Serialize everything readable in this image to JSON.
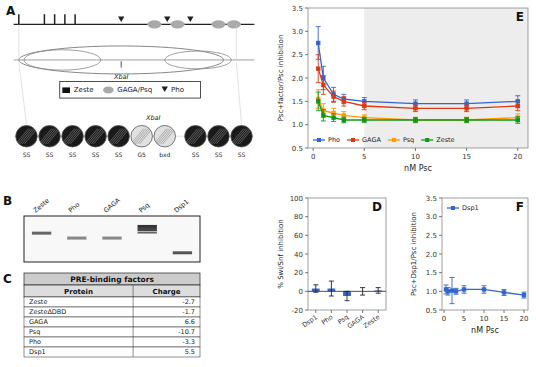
{
  "chart_data": [
    {
      "type": "diagram",
      "annotations": [
        "A",
        "XbaI",
        "Zeste",
        "GAGA/Psq",
        "Pho",
        "XbaI"
      ],
      "categories": [
        "SS",
        "SS",
        "SS",
        "SS",
        "SS",
        "G5",
        "bxd",
        "SS",
        "SS",
        "SS"
      ],
      "colors": [
        "#1a1a1a",
        "#1a1a1a",
        "#1a1a1a",
        "#1a1a1a",
        "#1a1a1a",
        "#e0e0e0",
        "#e0e0e0",
        "#1a1a1a",
        "#1a1a1a",
        "#1a1a1a"
      ]
    },
    {
      "type": "gel",
      "annotations": [
        "B"
      ],
      "categories": [
        "Zeste",
        "Pho",
        "GAGA",
        "Psq",
        "Dsp1"
      ]
    },
    {
      "type": "table",
      "annotations": [
        "C"
      ],
      "title": "PRE-binding factors",
      "xlabel": "Protein",
      "ylabel": "Charge",
      "categories": [
        "Zeste",
        "ZesteΔDBD",
        "GAGA",
        "Psq",
        "Pho",
        "Dsp1"
      ],
      "values": [
        -2.7,
        -1.7,
        6.6,
        -10.7,
        -3.3,
        5.5
      ]
    },
    {
      "type": "line",
      "annotations": [
        "E"
      ],
      "xlabel": "nM Psc",
      "ylabel": "Psc+factor/Psc inhibition",
      "x": [
        0.5,
        1,
        2,
        3,
        5,
        10,
        15,
        20
      ],
      "series": [
        {
          "name": "Pho",
          "values": [
            2.75,
            2.0,
            1.65,
            1.55,
            1.5,
            1.45,
            1.45,
            1.5
          ],
          "errors": [
            0.35,
            0.25,
            0.15,
            0.1,
            0.08,
            0.08,
            0.08,
            0.12
          ]
        },
        {
          "name": "GAGA",
          "values": [
            2.2,
            1.85,
            1.6,
            1.5,
            1.4,
            1.35,
            1.35,
            1.4
          ],
          "errors": [
            0.3,
            0.2,
            0.12,
            0.1,
            0.08,
            0.07,
            0.07,
            0.1
          ]
        },
        {
          "name": "Psq",
          "values": [
            1.55,
            1.3,
            1.25,
            1.2,
            1.15,
            1.1,
            1.1,
            1.15
          ],
          "errors": [
            0.2,
            0.15,
            0.1,
            0.08,
            0.06,
            0.06,
            0.06,
            0.08
          ]
        },
        {
          "name": "Zeste",
          "values": [
            1.5,
            1.2,
            1.15,
            1.1,
            1.1,
            1.1,
            1.1,
            1.1
          ],
          "errors": [
            0.2,
            0.12,
            0.08,
            0.06,
            0.05,
            0.05,
            0.05,
            0.07
          ]
        }
      ],
      "shaded_x": [
        5,
        21
      ],
      "xlim": [
        -0.5,
        21
      ],
      "ylim": [
        0.5,
        3.5
      ],
      "xticks": [
        0,
        5,
        10,
        15,
        20
      ],
      "yticks": [
        0.5,
        {
          "value": 1,
          "label": "1.0"
        },
        1.5,
        {
          "value": 2,
          "label": "2.0"
        },
        2.5,
        {
          "value": 3,
          "label": "3.0"
        },
        3.5
      ],
      "marker": "square",
      "legend": "lower left"
    },
    {
      "type": "bar",
      "annotations": [
        "D"
      ],
      "ylabel": "% Swi/Snf inhibition",
      "categories": [
        "Dsp1",
        "Pho",
        "Psq",
        "GAGA",
        "Zeste"
      ],
      "values": [
        3,
        3,
        -5,
        0,
        1
      ],
      "errors": [
        4,
        8,
        5,
        4,
        3
      ],
      "ylim": [
        -20,
        100
      ],
      "yticks": [
        -20,
        0,
        20,
        40,
        60,
        80,
        100
      ]
    },
    {
      "type": "line",
      "annotations": [
        "F"
      ],
      "xlabel": "nM Psc",
      "ylabel": "Psc+Dsp1/Psc inhibition",
      "x": [
        0.5,
        1,
        2,
        3,
        5,
        10,
        15,
        20
      ],
      "series": [
        {
          "name": "Dsp1",
          "values": [
            1.05,
            1.0,
            1.02,
            1.0,
            1.05,
            1.05,
            0.97,
            0.9
          ],
          "errors": [
            0.12,
            0.1,
            0.35,
            0.08,
            0.1,
            0.1,
            0.08,
            0.08
          ]
        }
      ],
      "xlim": [
        -0.5,
        21
      ],
      "ylim": [
        0.5,
        3.5
      ],
      "xticks": [
        0,
        5,
        10,
        15,
        20
      ],
      "yticks": [
        0.5,
        {
          "value": 1,
          "label": "1.0"
        },
        1.5,
        {
          "value": 2,
          "label": "2.0"
        },
        2.5,
        {
          "value": 3,
          "label": "3.0"
        },
        3.5
      ],
      "marker": "square",
      "legend": "upper left"
    }
  ]
}
